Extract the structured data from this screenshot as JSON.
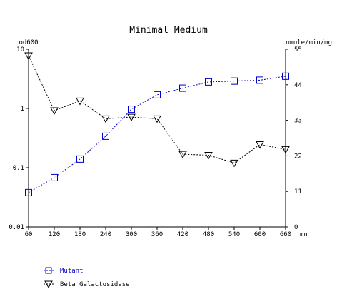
{
  "chart_data": {
    "type": "line",
    "title": "Minimal Medium",
    "x_unit": "mn",
    "y_left_label": "od600",
    "y_right_label": "nmole/min/mg",
    "y_left_scale": "log",
    "y_left_range": [
      0.01,
      10
    ],
    "y_left_ticks": [
      "10",
      "1",
      "0.1",
      "0.01"
    ],
    "y_right_range": [
      0,
      55
    ],
    "y_right_ticks": [
      "55",
      "44",
      "33",
      "22",
      "11",
      "0"
    ],
    "x_range": [
      60,
      660
    ],
    "x_ticks": [
      "60",
      "120",
      "180",
      "240",
      "300",
      "360",
      "420",
      "480",
      "540",
      "600",
      "660"
    ],
    "grid": false,
    "legend_position": "bottom-left",
    "series": [
      {
        "name": "Mutant",
        "axis": "left",
        "color": "#0000cc",
        "marker": "square",
        "line": "dashed",
        "x": [
          60,
          120,
          180,
          240,
          300,
          360,
          420,
          480,
          540,
          600,
          660
        ],
        "values": [
          0.038,
          0.068,
          0.14,
          0.34,
          0.97,
          1.7,
          2.2,
          2.8,
          2.9,
          3.0,
          3.5
        ]
      },
      {
        "name": "Beta Galactosidase",
        "axis": "right",
        "color": "#000000",
        "marker": "triangle-down",
        "line": "dashed",
        "x": [
          60,
          120,
          180,
          240,
          300,
          360,
          420,
          480,
          540,
          600,
          660
        ],
        "values": [
          53,
          36,
          39,
          33.5,
          34,
          33.5,
          22.5,
          22.2,
          19.8,
          25.5,
          24
        ]
      }
    ]
  }
}
